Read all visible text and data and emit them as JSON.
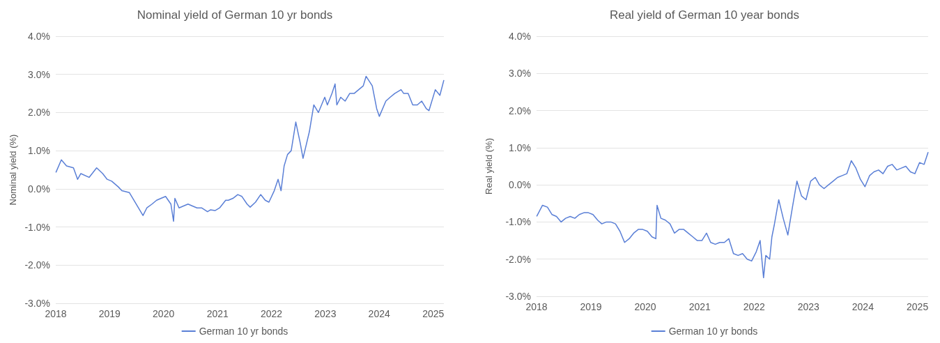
{
  "chart_data": [
    {
      "type": "line",
      "title": "Nominal yield of German 10 yr bonds",
      "ylabel": "Nominal yield (%)",
      "xlim": [
        "2018-01-01",
        "2025-03-14"
      ],
      "xticks": [
        "2018",
        "2019",
        "2020",
        "2021",
        "2022",
        "2023",
        "2024",
        "2025"
      ],
      "ylim": [
        -3,
        4
      ],
      "yticks": [
        {
          "value": -3,
          "label": "-3.0%"
        },
        {
          "value": -2,
          "label": "-2.0%"
        },
        {
          "value": -1,
          "label": "-1.0%"
        },
        {
          "value": 0,
          "label": "0.0%"
        },
        {
          "value": 1,
          "label": "1.0%"
        },
        {
          "value": 2,
          "label": "2.0%"
        },
        {
          "value": 3,
          "label": "3.0%"
        },
        {
          "value": 4,
          "label": "4.0%"
        }
      ],
      "grid": "y",
      "legend": "bottom",
      "marker": "none",
      "line_style": "solid",
      "x": [
        "2018-01-02",
        "2018-02-08",
        "2018-03-15",
        "2018-05-01",
        "2018-05-29",
        "2018-06-20",
        "2018-08-15",
        "2018-10-05",
        "2018-11-15",
        "2018-12-15",
        "2019-01-15",
        "2019-03-01",
        "2019-03-25",
        "2019-05-15",
        "2019-06-15",
        "2019-08-15",
        "2019-09-10",
        "2019-10-15",
        "2019-11-15",
        "2019-12-15",
        "2020-01-15",
        "2020-02-20",
        "2020-03-09",
        "2020-03-18",
        "2020-04-15",
        "2020-05-15",
        "2020-06-15",
        "2020-07-15",
        "2020-08-15",
        "2020-09-15",
        "2020-10-25",
        "2020-11-15",
        "2020-12-15",
        "2021-01-15",
        "2021-02-25",
        "2021-03-15",
        "2021-04-15",
        "2021-05-18",
        "2021-06-15",
        "2021-07-20",
        "2021-08-10",
        "2021-09-15",
        "2021-10-20",
        "2021-11-20",
        "2021-12-15",
        "2022-01-20",
        "2022-02-15",
        "2022-03-07",
        "2022-03-28",
        "2022-04-20",
        "2022-05-15",
        "2022-06-15",
        "2022-07-15",
        "2022-08-03",
        "2022-09-15",
        "2022-10-15",
        "2022-11-15",
        "2022-12-28",
        "2023-01-15",
        "2023-02-15",
        "2023-03-08",
        "2023-03-20",
        "2023-04-15",
        "2023-05-15",
        "2023-06-15",
        "2023-07-15",
        "2023-08-15",
        "2023-09-15",
        "2023-10-04",
        "2023-11-15",
        "2023-12-15",
        "2024-01-02",
        "2024-02-15",
        "2024-03-15",
        "2024-04-15",
        "2024-05-28",
        "2024-06-15",
        "2024-07-15",
        "2024-08-15",
        "2024-09-15",
        "2024-10-15",
        "2024-11-15",
        "2024-12-03",
        "2025-01-15",
        "2025-02-15",
        "2025-03-14"
      ],
      "series": [
        {
          "name": "German 10 yr bonds",
          "color": "#5a7fd6",
          "values": [
            0.43,
            0.76,
            0.6,
            0.55,
            0.25,
            0.4,
            0.3,
            0.55,
            0.4,
            0.25,
            0.2,
            0.05,
            -0.05,
            -0.1,
            -0.3,
            -0.7,
            -0.5,
            -0.4,
            -0.3,
            -0.25,
            -0.2,
            -0.4,
            -0.85,
            -0.25,
            -0.5,
            -0.45,
            -0.4,
            -0.45,
            -0.5,
            -0.5,
            -0.6,
            -0.55,
            -0.57,
            -0.5,
            -0.3,
            -0.3,
            -0.25,
            -0.15,
            -0.2,
            -0.4,
            -0.48,
            -0.35,
            -0.15,
            -0.3,
            -0.35,
            -0.05,
            0.25,
            -0.05,
            0.6,
            0.9,
            1.0,
            1.75,
            1.2,
            0.8,
            1.5,
            2.2,
            2.0,
            2.4,
            2.2,
            2.5,
            2.75,
            2.2,
            2.4,
            2.3,
            2.5,
            2.5,
            2.6,
            2.7,
            2.95,
            2.7,
            2.1,
            1.9,
            2.3,
            2.4,
            2.5,
            2.6,
            2.5,
            2.5,
            2.2,
            2.2,
            2.3,
            2.1,
            2.05,
            2.6,
            2.45,
            2.85
          ]
        }
      ]
    },
    {
      "type": "line",
      "title": "Real yield of German 10 year bonds",
      "ylabel": "Real yield (%)",
      "xlim": [
        "2018-01-01",
        "2025-03-14"
      ],
      "xticks": [
        "2018",
        "2019",
        "2020",
        "2021",
        "2022",
        "2023",
        "2024",
        "2025"
      ],
      "ylim": [
        -3,
        4
      ],
      "yticks": [
        {
          "value": -3,
          "label": "-3.0%"
        },
        {
          "value": -2,
          "label": "-2.0%"
        },
        {
          "value": -1,
          "label": "-1.0%"
        },
        {
          "value": 0,
          "label": "0.0%"
        },
        {
          "value": 1,
          "label": "1.0%"
        },
        {
          "value": 2,
          "label": "2.0%"
        },
        {
          "value": 3,
          "label": "3.0%"
        },
        {
          "value": 4,
          "label": "4.0%"
        }
      ],
      "grid": "y",
      "legend": "bottom",
      "marker": "none",
      "line_style": "solid",
      "x": [
        "2018-01-02",
        "2018-02-10",
        "2018-03-15",
        "2018-04-15",
        "2018-05-15",
        "2018-06-15",
        "2018-07-15",
        "2018-08-15",
        "2018-09-15",
        "2018-10-15",
        "2018-11-15",
        "2018-12-15",
        "2019-01-15",
        "2019-02-15",
        "2019-03-15",
        "2019-04-15",
        "2019-05-15",
        "2019-06-15",
        "2019-07-15",
        "2019-08-15",
        "2019-09-15",
        "2019-10-15",
        "2019-11-15",
        "2019-12-15",
        "2020-01-15",
        "2020-02-15",
        "2020-03-12",
        "2020-03-20",
        "2020-04-15",
        "2020-05-15",
        "2020-06-15",
        "2020-07-15",
        "2020-08-15",
        "2020-09-15",
        "2020-10-15",
        "2020-11-15",
        "2020-12-15",
        "2021-01-15",
        "2021-02-15",
        "2021-03-15",
        "2021-04-15",
        "2021-05-15",
        "2021-06-15",
        "2021-07-15",
        "2021-08-15",
        "2021-09-15",
        "2021-10-15",
        "2021-11-15",
        "2021-12-15",
        "2022-01-15",
        "2022-02-10",
        "2022-03-05",
        "2022-03-20",
        "2022-04-15",
        "2022-04-30",
        "2022-05-15",
        "2022-06-15",
        "2022-07-15",
        "2022-08-15",
        "2022-09-15",
        "2022-10-15",
        "2022-11-15",
        "2022-12-15",
        "2023-01-15",
        "2023-02-15",
        "2023-03-15",
        "2023-04-15",
        "2023-05-15",
        "2023-06-15",
        "2023-07-15",
        "2023-08-15",
        "2023-09-15",
        "2023-10-15",
        "2023-11-15",
        "2023-12-15",
        "2024-01-15",
        "2024-02-15",
        "2024-03-15",
        "2024-04-15",
        "2024-05-15",
        "2024-06-15",
        "2024-07-15",
        "2024-08-15",
        "2024-09-15",
        "2024-10-15",
        "2024-11-15",
        "2024-12-15",
        "2025-01-15",
        "2025-02-15",
        "2025-03-14"
      ],
      "series": [
        {
          "name": "German 10 yr bonds",
          "color": "#5a7fd6",
          "values": [
            -0.85,
            -0.55,
            -0.6,
            -0.8,
            -0.85,
            -1.0,
            -0.9,
            -0.85,
            -0.9,
            -0.8,
            -0.75,
            -0.75,
            -0.8,
            -0.95,
            -1.05,
            -1.0,
            -1.0,
            -1.05,
            -1.25,
            -1.55,
            -1.45,
            -1.3,
            -1.2,
            -1.2,
            -1.25,
            -1.4,
            -1.45,
            -0.55,
            -0.9,
            -0.95,
            -1.05,
            -1.3,
            -1.2,
            -1.2,
            -1.3,
            -1.4,
            -1.5,
            -1.5,
            -1.3,
            -1.55,
            -1.6,
            -1.55,
            -1.55,
            -1.45,
            -1.85,
            -1.9,
            -1.85,
            -2.0,
            -2.05,
            -1.8,
            -1.5,
            -2.5,
            -1.9,
            -2.0,
            -1.4,
            -1.1,
            -0.4,
            -0.9,
            -1.35,
            -0.6,
            0.1,
            -0.3,
            -0.4,
            0.1,
            0.2,
            0.0,
            -0.1,
            0.0,
            0.1,
            0.2,
            0.25,
            0.3,
            0.65,
            0.45,
            0.15,
            -0.05,
            0.25,
            0.35,
            0.4,
            0.3,
            0.5,
            0.55,
            0.4,
            0.45,
            0.5,
            0.35,
            0.3,
            0.6,
            0.55,
            0.88
          ]
        }
      ]
    }
  ]
}
